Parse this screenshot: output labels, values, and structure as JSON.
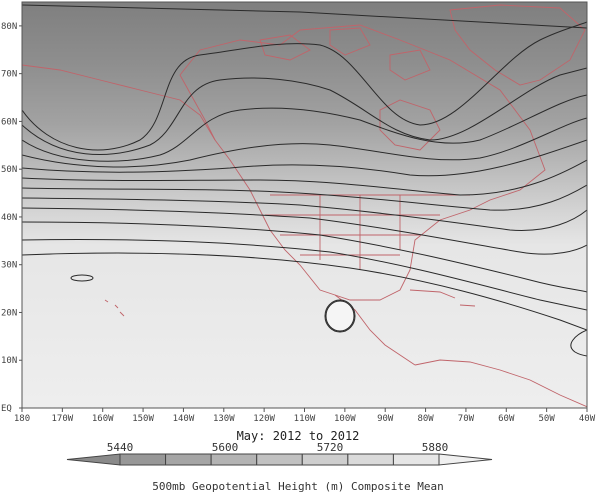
{
  "map": {
    "subtitle": "May: 2012 to 2012",
    "colorbar_title": "500mb Geopotential Height (m) Composite Mean",
    "lon_labels": [
      "180",
      "170W",
      "160W",
      "150W",
      "140W",
      "130W",
      "120W",
      "110W",
      "100W",
      "90W",
      "80W",
      "70W",
      "60W",
      "50W",
      "40W"
    ],
    "lat_labels": [
      "EQ",
      "10N",
      "20N",
      "30N",
      "40N",
      "50N",
      "60N",
      "70N",
      "80N"
    ],
    "lon_range": [
      -180,
      -40
    ],
    "lat_range": [
      0,
      85
    ],
    "colorbar": {
      "labels": [
        "5440",
        "5600",
        "5720",
        "5880"
      ],
      "colors": [
        "#8a8a8a",
        "#979797",
        "#a5a5a5",
        "#b3b3b3",
        "#c1c1c1",
        "#cecece",
        "#dadada",
        "#e6e6e6",
        "#f0f0f0"
      ]
    },
    "coastline_color": "#c0646a",
    "contour_color": "#2a2a2a"
  }
}
